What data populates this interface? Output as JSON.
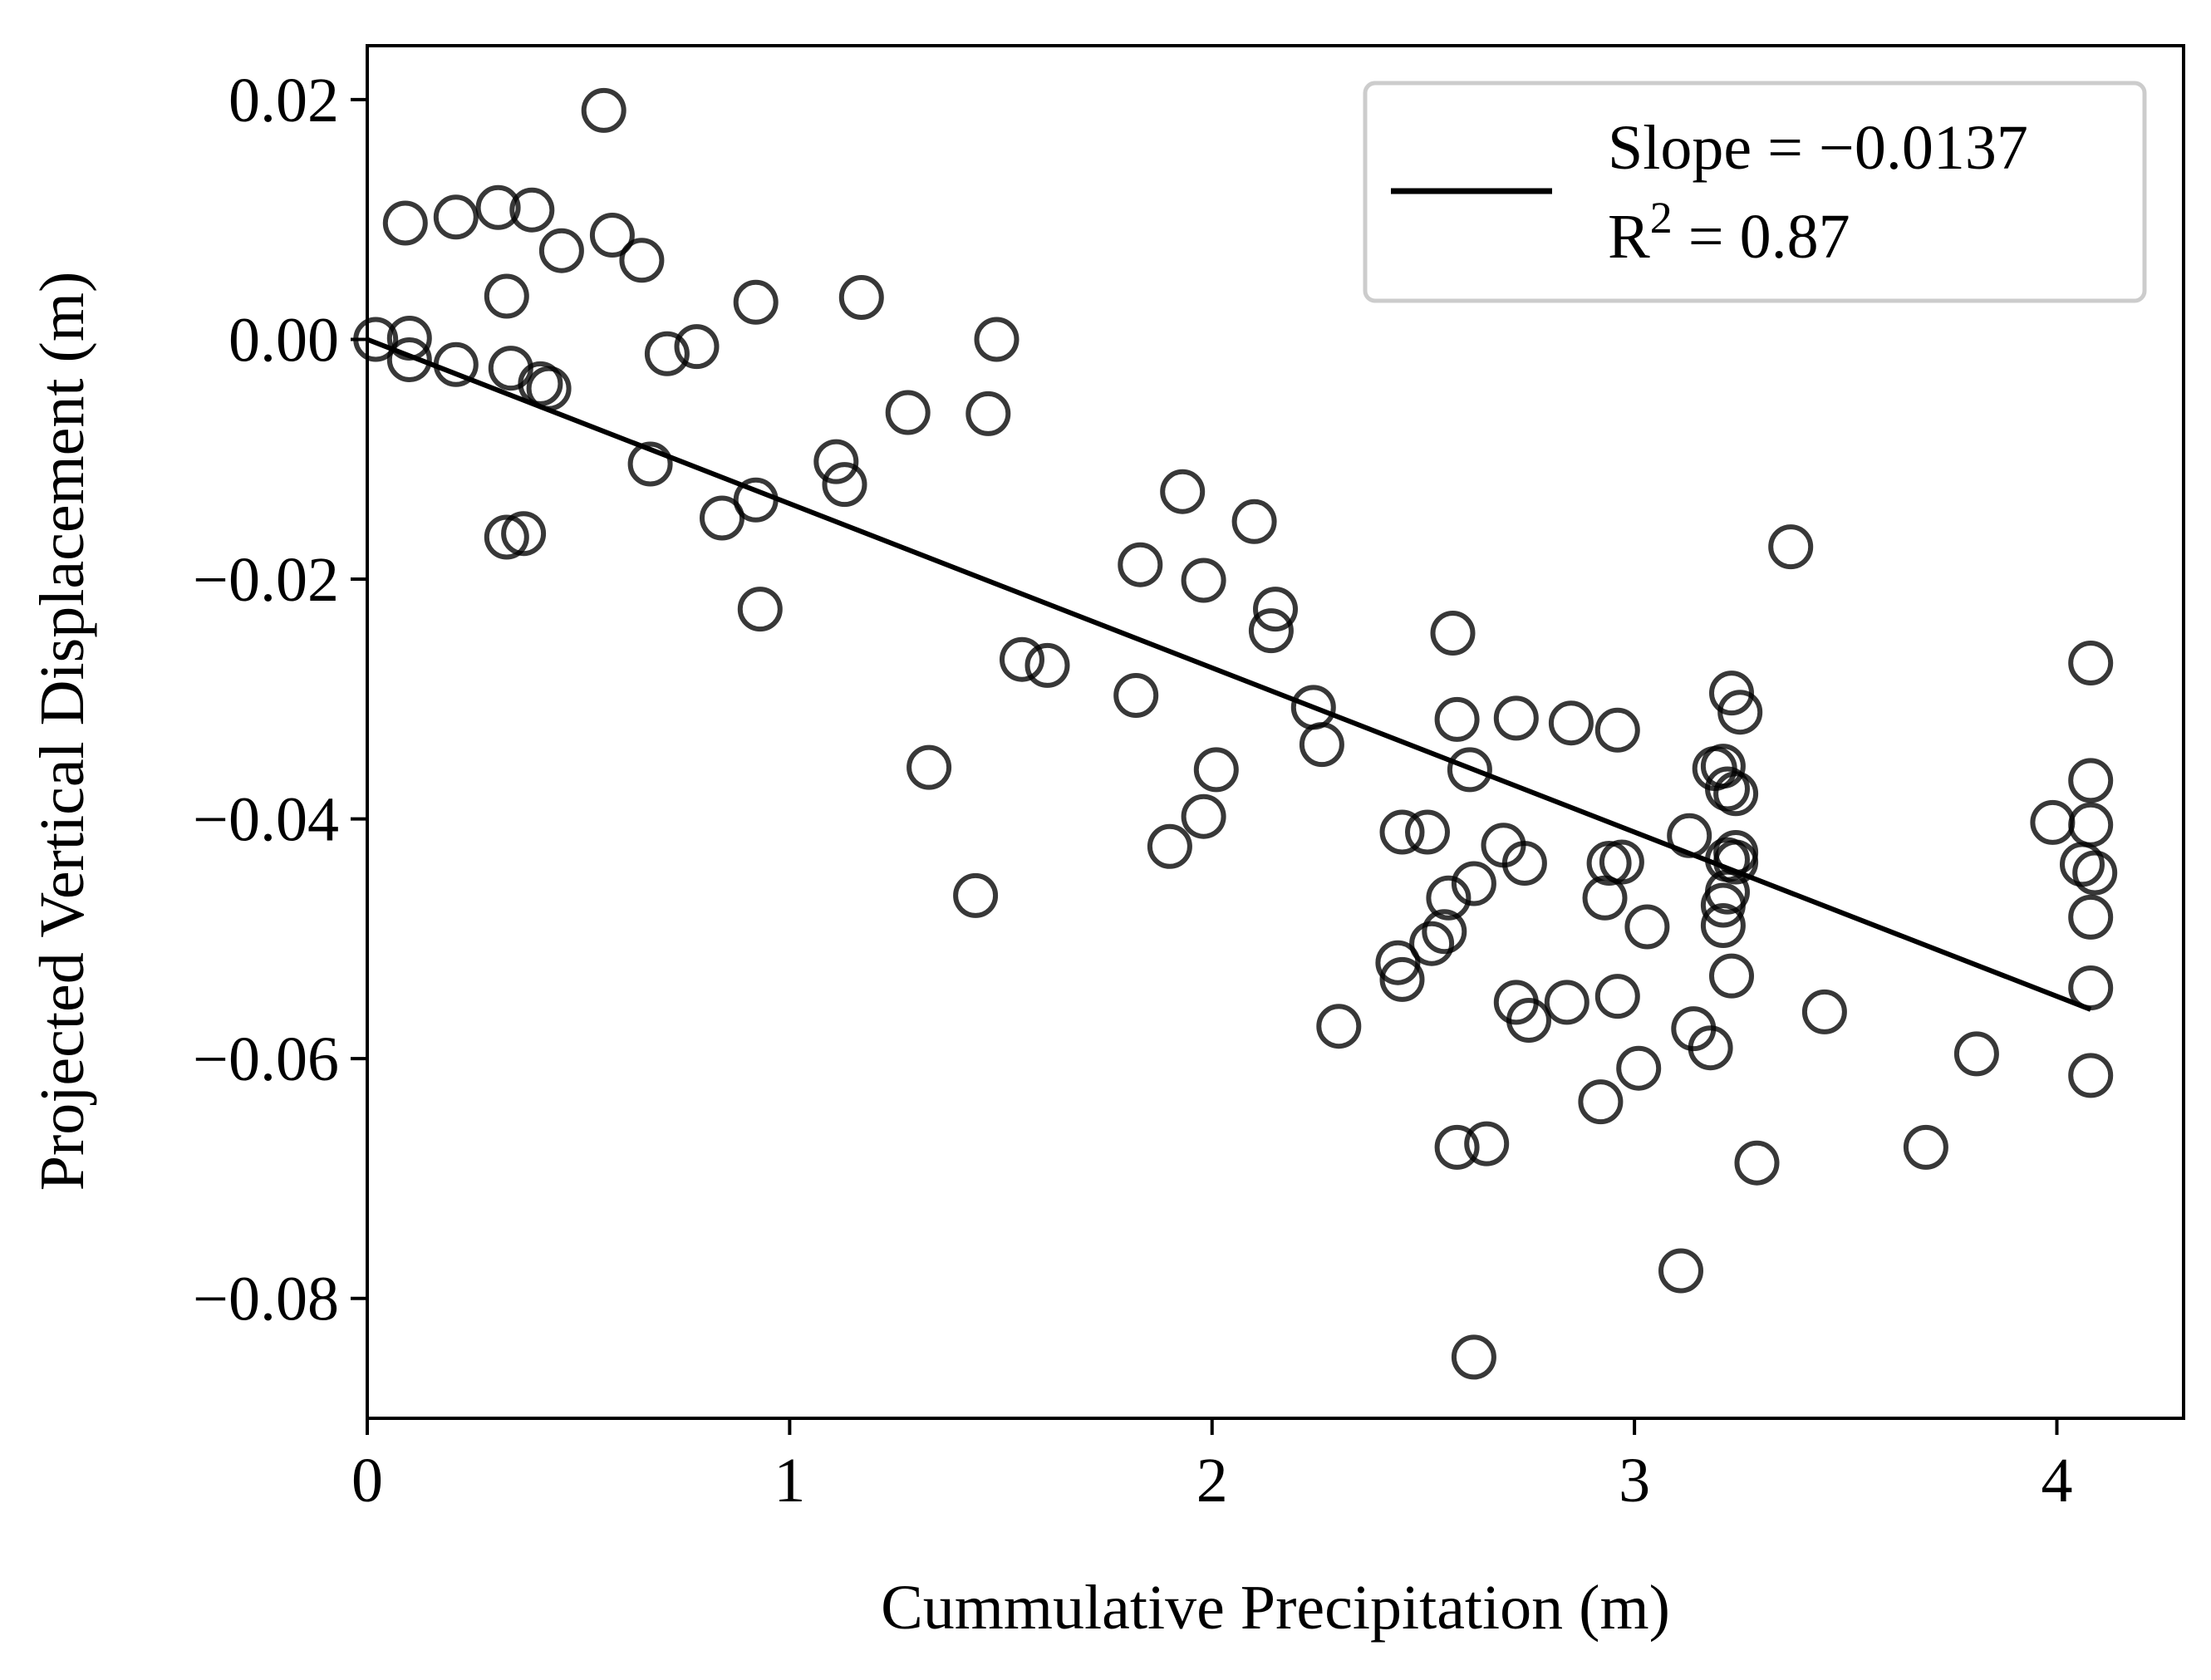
{
  "chart_data": {
    "type": "scatter",
    "title": "",
    "xlabel": "Cummulative Precipitation (m)",
    "ylabel": "Projected Vertical Displacement (m)",
    "xlim": [
      0,
      4.3
    ],
    "ylim": [
      -0.09,
      0.0245
    ],
    "xticks": [
      0,
      1,
      2,
      3,
      4
    ],
    "xtick_labels": [
      "0",
      "1",
      "2",
      "3",
      "4"
    ],
    "yticks": [
      0.02,
      0.0,
      -0.02,
      -0.04,
      -0.06,
      -0.08
    ],
    "ytick_labels": [
      "0.02",
      "0.00",
      "−0.02",
      "−0.04",
      "−0.06",
      "−0.08"
    ],
    "grid": false,
    "legend": {
      "position": "top-right",
      "line1": "Slope = −0.0137",
      "line2_prefix": "R",
      "line2_sup": "2",
      "line2_suffix": " = 0.87"
    },
    "fit_line": {
      "slope": -0.0137,
      "intercept": 0.0,
      "x_start": 0.0,
      "x_end": 4.08
    },
    "series": [
      {
        "name": "observations",
        "points": [
          [
            0.02,
            0.0
          ],
          [
            0.09,
            0.0097
          ],
          [
            0.1,
            0.0001
          ],
          [
            0.1,
            -0.0017
          ],
          [
            0.21,
            0.0102
          ],
          [
            0.21,
            -0.0021
          ],
          [
            0.31,
            0.011
          ],
          [
            0.33,
            0.0036
          ],
          [
            0.34,
            -0.0024
          ],
          [
            0.33,
            -0.0165
          ],
          [
            0.37,
            -0.0162
          ],
          [
            0.39,
            0.0108
          ],
          [
            0.41,
            -0.0037
          ],
          [
            0.43,
            -0.0041
          ],
          [
            0.46,
            0.0074
          ],
          [
            0.56,
            0.0191
          ],
          [
            0.58,
            0.0087
          ],
          [
            0.65,
            0.0066
          ],
          [
            0.67,
            -0.0104
          ],
          [
            0.71,
            -0.0012
          ],
          [
            0.78,
            -0.0006
          ],
          [
            0.84,
            -0.0149
          ],
          [
            0.92,
            0.0031
          ],
          [
            0.92,
            -0.0134
          ],
          [
            0.93,
            -0.0225
          ],
          [
            1.11,
            -0.0102
          ],
          [
            1.13,
            -0.0121
          ],
          [
            1.17,
            0.0035
          ],
          [
            1.28,
            -0.0061
          ],
          [
            1.33,
            -0.0357
          ],
          [
            1.44,
            -0.0464
          ],
          [
            1.47,
            -0.0062
          ],
          [
            1.49,
            0.0
          ],
          [
            1.55,
            -0.0267
          ],
          [
            1.61,
            -0.0272
          ],
          [
            1.82,
            -0.0297
          ],
          [
            1.83,
            -0.0188
          ],
          [
            1.9,
            -0.0423
          ],
          [
            1.93,
            -0.0127
          ],
          [
            1.98,
            -0.0201
          ],
          [
            1.98,
            -0.0398
          ],
          [
            2.01,
            -0.0359
          ],
          [
            2.1,
            -0.0152
          ],
          [
            2.14,
            -0.0243
          ],
          [
            2.15,
            -0.0225
          ],
          [
            2.24,
            -0.0307
          ],
          [
            2.26,
            -0.0338
          ],
          [
            2.3,
            -0.0573
          ],
          [
            2.44,
            -0.052
          ],
          [
            2.45,
            -0.0411
          ],
          [
            2.45,
            -0.0534
          ],
          [
            2.51,
            -0.0411
          ],
          [
            2.52,
            -0.0504
          ],
          [
            2.55,
            -0.0494
          ],
          [
            2.56,
            -0.0466
          ],
          [
            2.57,
            -0.0245
          ],
          [
            2.58,
            -0.0317
          ],
          [
            2.58,
            -0.0674
          ],
          [
            2.61,
            -0.0359
          ],
          [
            2.62,
            -0.0454
          ],
          [
            2.62,
            -0.0849
          ],
          [
            2.65,
            -0.0671
          ],
          [
            2.69,
            -0.0422
          ],
          [
            2.72,
            -0.0316
          ],
          [
            2.72,
            -0.0553
          ],
          [
            2.74,
            -0.0437
          ],
          [
            2.75,
            -0.0568
          ],
          [
            2.84,
            -0.0553
          ],
          [
            2.85,
            -0.032
          ],
          [
            2.92,
            -0.0636
          ],
          [
            2.93,
            -0.0466
          ],
          [
            2.94,
            -0.0437
          ],
          [
            2.96,
            -0.0548
          ],
          [
            2.97,
            -0.0436
          ],
          [
            2.96,
            -0.0326
          ],
          [
            3.01,
            -0.0608
          ],
          [
            3.03,
            -0.049
          ],
          [
            3.11,
            -0.0777
          ],
          [
            3.13,
            -0.0414
          ],
          [
            3.14,
            -0.0575
          ],
          [
            3.18,
            -0.0591
          ],
          [
            3.19,
            -0.0358
          ],
          [
            3.21,
            -0.0356
          ],
          [
            3.21,
            -0.0489
          ],
          [
            3.21,
            -0.0472
          ],
          [
            3.22,
            -0.0434
          ],
          [
            3.22,
            -0.0375
          ],
          [
            3.22,
            -0.0461
          ],
          [
            3.23,
            -0.0295
          ],
          [
            3.23,
            -0.0531
          ],
          [
            3.24,
            -0.0428
          ],
          [
            3.24,
            -0.0379
          ],
          [
            3.25,
            -0.0311
          ],
          [
            3.24,
            -0.0436
          ],
          [
            3.29,
            -0.0687
          ],
          [
            3.37,
            -0.0173
          ],
          [
            3.45,
            -0.0561
          ],
          [
            3.69,
            -0.0674
          ],
          [
            3.81,
            -0.0596
          ],
          [
            3.99,
            -0.0403
          ],
          [
            4.06,
            -0.0438
          ],
          [
            4.08,
            -0.027
          ],
          [
            4.08,
            -0.0368
          ],
          [
            4.08,
            -0.0405
          ],
          [
            4.08,
            -0.0482
          ],
          [
            4.08,
            -0.0541
          ],
          [
            4.08,
            -0.0614
          ],
          [
            4.09,
            -0.0445
          ]
        ]
      }
    ]
  }
}
